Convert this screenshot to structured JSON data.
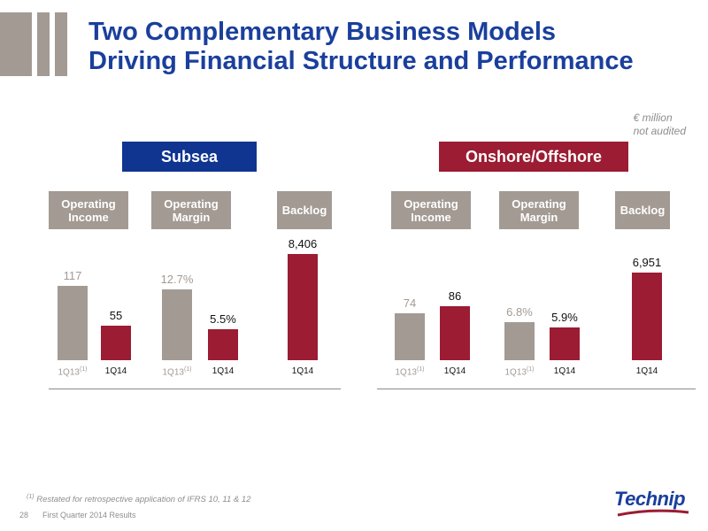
{
  "slide": {
    "title_line1": "Two Complementary Business Models",
    "title_line2": "Driving Financial Structure and Performance",
    "unit_line1": "€ million",
    "unit_line2": "not audited",
    "footnote_marker": "(1)",
    "footnote_text": "Restated for retrospective application of IFRS 10, 11 & 12",
    "page_number": "28",
    "footer_text": "First Quarter 2014 Results",
    "logo_text": "Technip"
  },
  "colors": {
    "title_blue": "#1a3f9c",
    "subsea_header": "#0f3591",
    "onshore_header": "#9b1c33",
    "prior_period_gray": "#a39a93",
    "current_period_red": "#9b1c33"
  },
  "chart_data": [
    {
      "section": "Subsea",
      "type": "bar",
      "panels": [
        {
          "label_line1": "Operating",
          "label_line2": "Income",
          "categories": [
            "1Q13",
            "1Q14"
          ],
          "values": [
            117,
            55
          ],
          "value_labels": [
            "117",
            "55"
          ],
          "ylim": [
            0,
            140
          ]
        },
        {
          "label_line1": "Operating",
          "label_line2": "Margin",
          "categories": [
            "1Q13",
            "1Q14"
          ],
          "values": [
            12.7,
            5.5
          ],
          "value_labels": [
            "12.7%",
            "5.5%"
          ],
          "ylim": [
            0,
            15
          ]
        },
        {
          "label_line1": "Backlog",
          "label_line2": "",
          "categories": [
            "1Q14"
          ],
          "values": [
            8406
          ],
          "value_labels": [
            "8,406"
          ],
          "ylim": [
            0,
            8406
          ]
        }
      ]
    },
    {
      "section": "Onshore/Offshore",
      "type": "bar",
      "panels": [
        {
          "label_line1": "Operating",
          "label_line2": "Income",
          "categories": [
            "1Q13",
            "1Q14"
          ],
          "values": [
            74,
            86
          ],
          "value_labels": [
            "74",
            "86"
          ],
          "ylim": [
            0,
            140
          ]
        },
        {
          "label_line1": "Operating",
          "label_line2": "Margin",
          "categories": [
            "1Q13",
            "1Q14"
          ],
          "values": [
            6.8,
            5.9
          ],
          "value_labels": [
            "6.8%",
            "5.9%"
          ],
          "ylim": [
            0,
            15
          ]
        },
        {
          "label_line1": "Backlog",
          "label_line2": "",
          "categories": [
            "1Q14"
          ],
          "values": [
            6951
          ],
          "value_labels": [
            "6,951"
          ],
          "ylim": [
            0,
            8406
          ]
        }
      ]
    }
  ]
}
